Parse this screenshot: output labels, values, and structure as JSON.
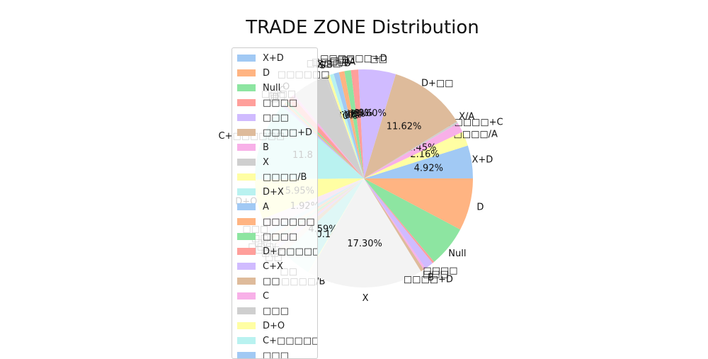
{
  "chart_data": {
    "type": "pie",
    "title": "TRADE ZONE Distribution",
    "legend_position": "left",
    "legend_visible_entries": [
      "X+D",
      "D",
      "Null",
      "□□□□",
      "□□□",
      "□□□□+D",
      "B",
      "X",
      "□□□□/B",
      "D+X",
      "A",
      "□□□□□□",
      "□□□□",
      "D+□□□□□□",
      "C+X",
      "□□",
      "C",
      "□□□",
      "D+O",
      "C+□□□□□□",
      "□□□"
    ],
    "slices": [
      {
        "label": "X+D",
        "value": 4.92,
        "pct_label": "4.92%",
        "color": "#a1c9f4"
      },
      {
        "label": "□□□□/A",
        "value": 2.16,
        "pct_label": "2.16%",
        "color": "#fffea3"
      },
      {
        "label": "□□□□□□+C",
        "value": 1.45,
        "pct_label": "1.45%",
        "color": "#f8b0e8"
      },
      {
        "label": "X/A",
        "value": 0.3,
        "pct_label": "",
        "color": "#cfcfcf"
      },
      {
        "label": "D+□□",
        "value": 11.62,
        "pct_label": "11.62%",
        "color": "#debb9b"
      },
      {
        "label": "□□",
        "value": 5.6,
        "pct_label": "5.60%",
        "color": "#d0bbff"
      },
      {
        "label": "□□□□□□+D",
        "value": 1.09,
        "pct_label": "1.09%",
        "color": "#ff9f9b"
      },
      {
        "label": "□□",
        "value": 0.98,
        "pct_label": "0.98%",
        "color": "#8de5a1"
      },
      {
        "label": "□ D",
        "value": 0.82,
        "pct_label": "0.82%",
        "color": "#ffb482"
      },
      {
        "label": "□□□□/A",
        "value": 0.8,
        "pct_label": "0.80%",
        "color": "#a1c9f4"
      },
      {
        "label": "□□□□/B",
        "value": 0.6,
        "pct_label": "0.60%",
        "color": "#b9f2f0"
      },
      {
        "label": "X/B",
        "value": 0.4,
        "pct_label": "0.40%",
        "color": "#fffea3"
      },
      {
        "label": "S",
        "value": 0.3,
        "pct_label": "",
        "color": "#cfcfcf"
      },
      {
        "label": "□□□□□□",
        "value": 5.3,
        "pct_label": "",
        "color": "#cfcfcf"
      },
      {
        "label": "O",
        "value": 0.4,
        "pct_label": "",
        "color": "#f8b0e8"
      },
      {
        "label": "C",
        "value": 1.0,
        "pct_label": "",
        "color": "#ff9f9b"
      },
      {
        "label": "□□□□",
        "value": 0.35,
        "pct_label": "",
        "color": "#8de5a1"
      },
      {
        "label": "□□",
        "value": 0.3,
        "pct_label": "",
        "color": "#ffb482"
      },
      {
        "label": "D",
        "value": 0.2,
        "pct_label": "",
        "color": "#a1c9f4"
      },
      {
        "label": "□",
        "value": 0.2,
        "pct_label": "",
        "color": "#d0bbff"
      },
      {
        "label": "C+□□□□□□",
        "value": 11.8,
        "pct_label": "11.8",
        "color": "#b9f2f0"
      },
      {
        "label": "D+O",
        "value": 5.95,
        "pct_label": "5.95%",
        "color": "#fffea3"
      },
      {
        "label": "□□□",
        "value": 1.92,
        "pct_label": "1.92%",
        "color": "#f8e9f4"
      },
      {
        "label": "□□",
        "value": 0.8,
        "pct_label": "",
        "color": "#dcf0fa"
      },
      {
        "label": "□□",
        "value": 0.6,
        "pct_label": "",
        "color": "#ffe9dc"
      },
      {
        "label": "□□□□",
        "value": 0.6,
        "pct_label": "",
        "color": "#ddf6e3"
      },
      {
        "label": "□□□",
        "value": 0.5,
        "pct_label": "",
        "color": "#ffe3e2"
      },
      {
        "label": "□□",
        "value": 0.5,
        "pct_label": "",
        "color": "#ede6ff"
      },
      {
        "label": "□□",
        "value": 1.0,
        "pct_label": "",
        "color": "#f3ebe1"
      },
      {
        "label": "□□",
        "value": 4.59,
        "pct_label": "4.59%",
        "color": "#dff7f6"
      },
      {
        "label": "□□□□/B",
        "value": 0.14,
        "pct_label": "0.14%",
        "color": "#fffee3"
      },
      {
        "label": "X",
        "value": 17.3,
        "pct_label": "17.30%",
        "color": "#f3f3f3"
      },
      {
        "label": "□□□□+D",
        "value": 0.5,
        "pct_label": "",
        "color": "#debb9b"
      },
      {
        "label": "B",
        "value": 0.3,
        "pct_label": "",
        "color": "#f8b0e8"
      },
      {
        "label": "□□□",
        "value": 1.3,
        "pct_label": "",
        "color": "#d0bbff"
      },
      {
        "label": "□□□□",
        "value": 0.3,
        "pct_label": "",
        "color": "#ff9f9b"
      },
      {
        "label": "Null",
        "value": 6.15,
        "pct_label": "",
        "color": "#8de5a1"
      },
      {
        "label": "D",
        "value": 7.82,
        "pct_label": "",
        "color": "#ffb482"
      }
    ]
  }
}
